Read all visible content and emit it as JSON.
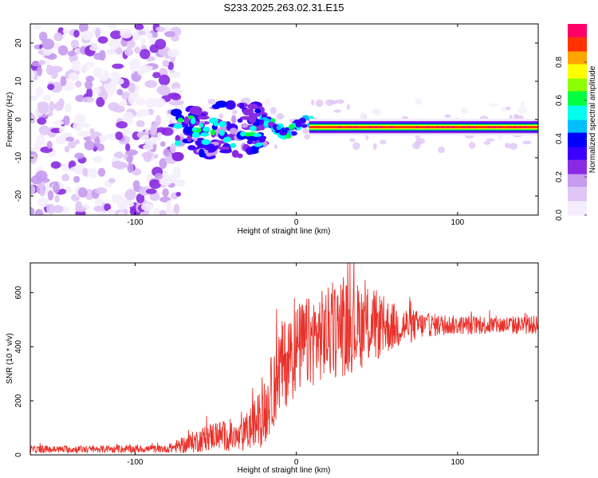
{
  "figure": {
    "title": "S233.2025.263.02.31.E15"
  },
  "chart_data": [
    {
      "type": "heatmap",
      "title": "S233.2025.263.02.31.E15",
      "xlabel": "Height of straight line (km)",
      "ylabel": "Frequency (Hz)",
      "xlim": [
        -165,
        150
      ],
      "ylim": [
        -25,
        25
      ],
      "x_ticks": [
        -100,
        0,
        100
      ],
      "y_ticks": [
        -20,
        -10,
        0,
        10,
        20
      ],
      "colorbar": {
        "label": "Normalized spectral amplitude",
        "range": [
          0,
          1
        ],
        "ticks": [
          "0.0",
          "0.2",
          "0.4",
          "0.6",
          "0.8"
        ],
        "tick_values": [
          0.0,
          0.2,
          0.4,
          0.6,
          0.8
        ],
        "colors": [
          "#f4eefc",
          "#e0c6f6",
          "#c79bf0",
          "#8a2be2",
          "#3b00ff",
          "#0000ff",
          "#00bfff",
          "#00ffee",
          "#00ff40",
          "#8cff00",
          "#ffff00",
          "#ffa500",
          "#ff3300",
          "#ff0066"
        ]
      },
      "regions": [
        {
          "name": "noise",
          "x_range": [
            -165,
            -76
          ],
          "f_range": [
            -25,
            25
          ],
          "amplitude": 0.1
        },
        {
          "name": "onset",
          "x_range": [
            -76,
            -20
          ],
          "f_center": -1,
          "f_halfwidth": 7,
          "amplitude": 0.3
        },
        {
          "name": "track",
          "x_range": [
            -20,
            150
          ],
          "f_center": -2,
          "amplitude": 0.95
        }
      ]
    },
    {
      "type": "line",
      "xlabel": "Height of straight line (km)",
      "ylabel": "SNR (10 * v/v)",
      "xlim": [
        -165,
        150
      ],
      "ylim": [
        0,
        710
      ],
      "x_ticks": [
        -100,
        0,
        100
      ],
      "y_ticks": [
        0,
        200,
        400,
        600
      ],
      "color": "#e8312a",
      "series": [
        {
          "name": "SNR",
          "envelope": [
            {
              "x": -165,
              "base": 20,
              "spread": 14
            },
            {
              "x": -80,
              "base": 22,
              "spread": 14
            },
            {
              "x": -65,
              "base": 45,
              "spread": 40
            },
            {
              "x": -50,
              "base": 75,
              "spread": 55
            },
            {
              "x": -35,
              "base": 60,
              "spread": 55
            },
            {
              "x": -20,
              "base": 150,
              "spread": 120
            },
            {
              "x": -10,
              "base": 320,
              "spread": 170
            },
            {
              "x": 0,
              "base": 390,
              "spread": 170
            },
            {
              "x": 15,
              "base": 440,
              "spread": 170
            },
            {
              "x": 30,
              "base": 470,
              "spread": 180
            },
            {
              "x": 45,
              "base": 480,
              "spread": 150
            },
            {
              "x": 60,
              "base": 475,
              "spread": 90
            },
            {
              "x": 80,
              "base": 480,
              "spread": 45
            },
            {
              "x": 100,
              "base": 480,
              "spread": 35
            },
            {
              "x": 150,
              "base": 480,
              "spread": 35
            }
          ]
        }
      ]
    }
  ]
}
